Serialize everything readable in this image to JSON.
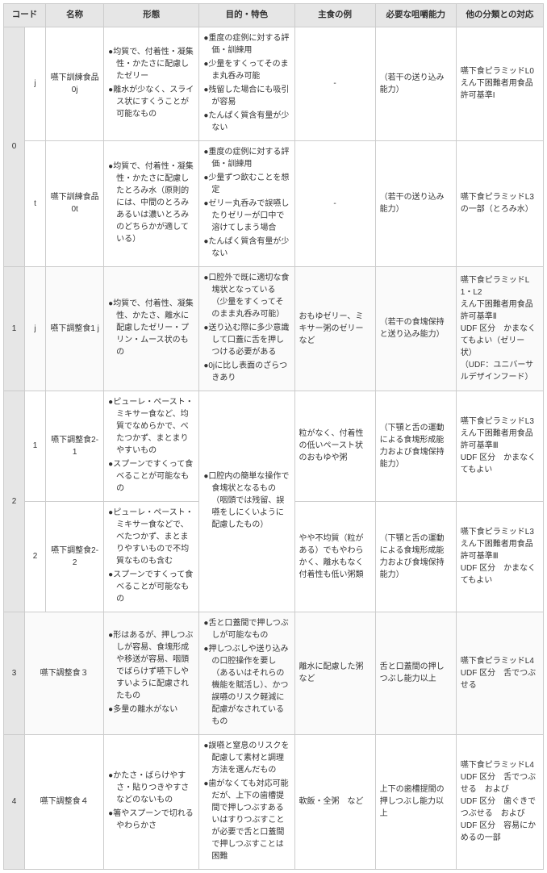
{
  "headers": {
    "code": "コード",
    "name": "名称",
    "form": "形態",
    "purpose": "目的・特色",
    "example": "主食の例",
    "ability": "必要な咀嚼能力",
    "other": "他の分類との対応"
  },
  "rows": [
    {
      "codeMain": "0",
      "codeSub": "j",
      "name": "嚥下訓練食品0j",
      "form": [
        "均質で、付着性・凝集性・かたさに配慮したゼリー",
        "離水が少なく、スライス状にすくうことが可能なもの"
      ],
      "purpose": [
        "重度の症例に対する評価・訓練用",
        "少量をすくってそのまま丸呑み可能",
        "残留した場合にも吸引が容易",
        "たんぱく質含有量が少ない"
      ],
      "example": "-",
      "ability": "（若干の送り込み能力）",
      "other": "嚥下食ピラミッドL0\nえん下困難者用食品\n許可基準I"
    },
    {
      "codeSub": "t",
      "name": "嚥下訓練食品0t",
      "form": [
        "均質で、付着性・凝集性・かたさに配慮したとろみ水（原則的には、中間のとろみあるいは濃いとろみのどちらかが適している）"
      ],
      "purpose": [
        "重度の症例に対する評価・訓練用",
        "少量ずつ飲むことを想定",
        "ゼリー丸呑みで誤嚥したりゼリーが口中で溶けてしまう場合",
        "たんぱく質含有量が少ない"
      ],
      "example": "-",
      "ability": "（若干の送り込み能力）",
      "other": "嚥下食ピラミッドL3の一部（とろみ水）"
    },
    {
      "codeMain": "1",
      "codeSub": "j",
      "name": "嚥下調整食1 j",
      "form": [
        "均質で、付着性、凝集性、かたさ、離水に配慮したゼリー・プリン・ムース状のもの"
      ],
      "purpose": [
        "口腔外で既に適切な食塊状となっている（少量をすくってそのまま丸呑み可能）",
        "送り込む際に多少意識して口蓋に舌を押しつける必要がある",
        "0jに比し表面のざらつきあり"
      ],
      "example": "おもゆゼリー、ミキサー粥のゼリー　など",
      "ability": "（若干の食塊保持と送り込み能力）",
      "other": "嚥下食ピラミッドL1・L2\nえん下困難者用食品許可基準Ⅱ\nUDF 区分　かまなくてもよい（ゼリー状）\n（UDF：ユニバーサルデザインフード）"
    },
    {
      "codeMain": "2",
      "codeSub": "1",
      "name": "嚥下調整食2-1",
      "form": [
        "ピューレ・ペースト・ミキサー食など、均質でなめらかで、べたつかず、まとまりやすいもの",
        "スプーンですくって食べることが可能なもの"
      ],
      "purpose": [
        "口腔内の簡単な操作で食塊状となるもの（咽頭では残留、誤嚥をしにくいように配慮したもの）"
      ],
      "example": "粒がなく、付着性の低いペースト状のおもゆや粥",
      "ability": "（下顎と舌の運動による食塊形成能力および食塊保持能力）",
      "other": "嚥下食ピラミッドL3\nえん下困難者用食品許可基準Ⅲ\nUDF 区分　かまなくてもよい"
    },
    {
      "codeSub": "2",
      "name": "嚥下調整食2-2",
      "form": [
        "ピューレ・ペースト・ミキサー食などで、べたつかず、まとまりやすいもので不均質なものも含む",
        "スプーンですくって食べることが可能なもの"
      ],
      "example": "やや不均質（粒がある）でもやわらかく、離水もなく付着性も低い粥類",
      "ability": "（下顎と舌の運動による食塊形成能力および食塊保持能力）",
      "other": "嚥下食ピラミッドL3\nえん下困難者用食品許可基準Ⅲ\nUDF 区分　かまなくてもよい"
    },
    {
      "codeMain": "3",
      "name": "嚥下調整食３",
      "form": [
        "形はあるが、押しつぶしが容易、食塊形成や移送が容易、咽頭でばらけず嚥下しやすいように配慮されたもの",
        "多量の離水がない"
      ],
      "purpose": [
        "舌と口蓋間で押しつぶしが可能なもの",
        "押しつぶしや送り込みの口腔操作を要し（あるいはそれらの機能を賦活し）、かつ誤嚥のリスク軽減に配慮がなされているもの"
      ],
      "example": "離水に配慮した粥など",
      "ability": "舌と口蓋間の押しつぶし能力以上",
      "other": "嚥下食ピラミッドL4\nUDF 区分　舌でつぶせる"
    },
    {
      "codeMain": "4",
      "name": "嚥下調整食４",
      "form": [
        "かたさ・ばらけやすさ・貼りつきやすさなどのないもの",
        "箸やスプーンで切れるやわらかさ"
      ],
      "purpose": [
        "誤嚥と窒息のリスクを配慮して素材と調理方法を選んだもの",
        "歯がなくても対応可能だが、上下の歯槽提間で押しつぶすあるいはすりつぶすことが必要で舌と口蓋間で押しつぶすことは困難"
      ],
      "example": "軟飯・全粥　など",
      "ability": "上下の歯槽提間の押しつぶし能力以上",
      "other": "嚥下食ピラミッドL4\nUDF 区分　舌でつぶせる　および\nUDF 区分　歯ぐきでつぶせる　および\nUDF 区分　容易にかめるの一部"
    }
  ]
}
